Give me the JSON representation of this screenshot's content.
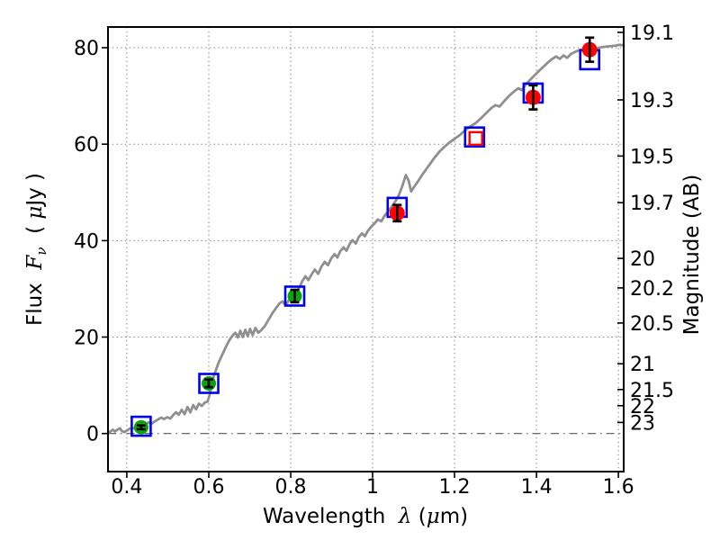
{
  "chart_data": {
    "type": "line",
    "title": "",
    "xlabel": {
      "text": "Wavelength λ (μm)",
      "word": "Wavelength  ",
      "lambda": "λ",
      "open": " (",
      "mu": "μ",
      "close": "m)"
    },
    "ylabel_left": {
      "text": "Flux Fν ( μJy )",
      "word": "Flux  ",
      "symbol": "F",
      "subscript": "ν",
      "open": "  ( ",
      "mu": "μ",
      "close": "Jy )"
    },
    "ylabel_right": "Magnitude (AB)",
    "xlim": [
      0.354,
      1.613
    ],
    "ylim": [
      -7.9,
      84.3
    ],
    "grid": {
      "shown": true,
      "style": "dotted",
      "zero_flux_line_style": "dash-dot"
    },
    "legend": "none",
    "ab_zero_point": 23.9,
    "x_ticks": [
      {
        "v": 0.4,
        "label": "0.4"
      },
      {
        "v": 0.6,
        "label": "0.6"
      },
      {
        "v": 0.8,
        "label": "0.8"
      },
      {
        "v": 1.0,
        "label": "1"
      },
      {
        "v": 1.2,
        "label": "1.2"
      },
      {
        "v": 1.4,
        "label": "1.4"
      },
      {
        "v": 1.6,
        "label": "1.6"
      }
    ],
    "y_ticks_left": [
      {
        "v": 0,
        "label": "0"
      },
      {
        "v": 20,
        "label": "20"
      },
      {
        "v": 40,
        "label": "40"
      },
      {
        "v": 60,
        "label": "60"
      },
      {
        "v": 80,
        "label": "80"
      }
    ],
    "y_ticks_right_mag": [
      {
        "v": 19.1,
        "label": "19.1"
      },
      {
        "v": 19.3,
        "label": "19.3"
      },
      {
        "v": 19.5,
        "label": "19.5"
      },
      {
        "v": 19.7,
        "label": "19.7"
      },
      {
        "v": 20,
        "label": "20"
      },
      {
        "v": 20.2,
        "label": "20.2"
      },
      {
        "v": 20.5,
        "label": "20.5"
      },
      {
        "v": 21,
        "label": "21"
      },
      {
        "v": 21.5,
        "label": "21.5"
      },
      {
        "v": 22,
        "label": "22"
      },
      {
        "v": 23,
        "label": "23"
      }
    ],
    "colors": {
      "spectrum": "#8f8f8f",
      "model_square": "#0000ee",
      "obs_green": "#0ca30c",
      "obs_red": "#ff0000",
      "open_red_square": "#ff0000",
      "error_bar": "#000000"
    },
    "series": [
      {
        "name": "model spectrum",
        "type": "line",
        "color_key": "spectrum",
        "points": [
          [
            0.354,
            0.2
          ],
          [
            0.36,
            0.4
          ],
          [
            0.366,
            0.8
          ],
          [
            0.371,
            0.4
          ],
          [
            0.377,
            0.8
          ],
          [
            0.383,
            1.1
          ],
          [
            0.388,
            0.5
          ],
          [
            0.394,
            0.3
          ],
          [
            0.4,
            0.6
          ],
          [
            0.407,
            1.0
          ],
          [
            0.414,
            1.2
          ],
          [
            0.421,
            0.9
          ],
          [
            0.429,
            1.2
          ],
          [
            0.437,
            1.5
          ],
          [
            0.445,
            1.8
          ],
          [
            0.453,
            2.3
          ],
          [
            0.46,
            2.0
          ],
          [
            0.468,
            2.5
          ],
          [
            0.476,
            2.9
          ],
          [
            0.484,
            3.3
          ],
          [
            0.491,
            3.0
          ],
          [
            0.499,
            3.4
          ],
          [
            0.506,
            3.1
          ],
          [
            0.513,
            3.8
          ],
          [
            0.52,
            4.4
          ],
          [
            0.527,
            3.9
          ],
          [
            0.534,
            4.9
          ],
          [
            0.541,
            4.0
          ],
          [
            0.548,
            5.5
          ],
          [
            0.555,
            4.4
          ],
          [
            0.562,
            5.9
          ],
          [
            0.569,
            5.0
          ],
          [
            0.576,
            6.2
          ],
          [
            0.583,
            5.7
          ],
          [
            0.59,
            6.4
          ],
          [
            0.597,
            6.6
          ],
          [
            0.602,
            8.0
          ],
          [
            0.607,
            10.0
          ],
          [
            0.612,
            11.8
          ],
          [
            0.618,
            13.3
          ],
          [
            0.624,
            14.7
          ],
          [
            0.631,
            16.0
          ],
          [
            0.638,
            17.3
          ],
          [
            0.645,
            18.5
          ],
          [
            0.652,
            19.6
          ],
          [
            0.659,
            20.4
          ],
          [
            0.665,
            20.9
          ],
          [
            0.671,
            19.9
          ],
          [
            0.677,
            21.3
          ],
          [
            0.683,
            20.0
          ],
          [
            0.689,
            21.5
          ],
          [
            0.695,
            20.2
          ],
          [
            0.701,
            21.7
          ],
          [
            0.707,
            20.4
          ],
          [
            0.714,
            21.9
          ],
          [
            0.721,
            20.9
          ],
          [
            0.729,
            21.5
          ],
          [
            0.737,
            22.3
          ],
          [
            0.746,
            23.6
          ],
          [
            0.755,
            24.9
          ],
          [
            0.764,
            26.0
          ],
          [
            0.772,
            26.9
          ],
          [
            0.78,
            27.4
          ],
          [
            0.788,
            26.6
          ],
          [
            0.796,
            27.7
          ],
          [
            0.805,
            28.3
          ],
          [
            0.813,
            29.0
          ],
          [
            0.821,
            30.2
          ],
          [
            0.829,
            31.7
          ],
          [
            0.836,
            32.6
          ],
          [
            0.843,
            31.8
          ],
          [
            0.851,
            33.0
          ],
          [
            0.859,
            34.0
          ],
          [
            0.867,
            33.1
          ],
          [
            0.875,
            34.6
          ],
          [
            0.883,
            35.6
          ],
          [
            0.891,
            34.9
          ],
          [
            0.899,
            36.3
          ],
          [
            0.907,
            37.2
          ],
          [
            0.914,
            36.5
          ],
          [
            0.921,
            37.8
          ],
          [
            0.929,
            38.6
          ],
          [
            0.936,
            37.9
          ],
          [
            0.944,
            39.3
          ],
          [
            0.951,
            40.1
          ],
          [
            0.959,
            39.4
          ],
          [
            0.966,
            40.7
          ],
          [
            0.974,
            41.5
          ],
          [
            0.981,
            40.9
          ],
          [
            0.989,
            42.1
          ],
          [
            0.997,
            42.9
          ],
          [
            1.005,
            43.6
          ],
          [
            1.013,
            44.4
          ],
          [
            1.021,
            44.0
          ],
          [
            1.029,
            45.1
          ],
          [
            1.038,
            46.1
          ],
          [
            1.047,
            47.1
          ],
          [
            1.056,
            48.2
          ],
          [
            1.065,
            49.6
          ],
          [
            1.073,
            51.4
          ],
          [
            1.081,
            53.6
          ],
          [
            1.088,
            52.4
          ],
          [
            1.094,
            50.2
          ],
          [
            1.101,
            51.1
          ],
          [
            1.11,
            52.2
          ],
          [
            1.12,
            53.5
          ],
          [
            1.13,
            54.7
          ],
          [
            1.141,
            56.0
          ],
          [
            1.152,
            57.3
          ],
          [
            1.164,
            58.5
          ],
          [
            1.176,
            59.5
          ],
          [
            1.188,
            60.4
          ],
          [
            1.2,
            61.1
          ],
          [
            1.213,
            61.9
          ],
          [
            1.226,
            62.9
          ],
          [
            1.239,
            63.7
          ],
          [
            1.252,
            64.4
          ],
          [
            1.265,
            65.4
          ],
          [
            1.278,
            66.5
          ],
          [
            1.29,
            67.5
          ],
          [
            1.3,
            68.1
          ],
          [
            1.31,
            67.8
          ],
          [
            1.321,
            68.9
          ],
          [
            1.333,
            70.0
          ],
          [
            1.345,
            70.9
          ],
          [
            1.356,
            71.6
          ],
          [
            1.364,
            71.2
          ],
          [
            1.373,
            72.3
          ],
          [
            1.383,
            73.2
          ],
          [
            1.393,
            74.1
          ],
          [
            1.404,
            75.0
          ],
          [
            1.415,
            75.9
          ],
          [
            1.426,
            76.8
          ],
          [
            1.437,
            77.6
          ],
          [
            1.448,
            78.2
          ],
          [
            1.457,
            77.7
          ],
          [
            1.466,
            78.4
          ],
          [
            1.475,
            77.9
          ],
          [
            1.484,
            78.7
          ],
          [
            1.496,
            79.2
          ],
          [
            1.508,
            79.6
          ],
          [
            1.518,
            79.3
          ],
          [
            1.528,
            79.8
          ],
          [
            1.54,
            79.5
          ],
          [
            1.553,
            80.0
          ],
          [
            1.566,
            80.2
          ],
          [
            1.579,
            80.3
          ],
          [
            1.591,
            80.4
          ],
          [
            1.603,
            80.6
          ],
          [
            1.613,
            80.5
          ]
        ]
      },
      {
        "name": "model photometry squares",
        "type": "open_square",
        "color_key": "model_square",
        "size": 21,
        "stroke_width": 2.6,
        "points": [
          [
            0.435,
            1.5
          ],
          [
            0.6,
            10.4
          ],
          [
            0.81,
            28.5
          ],
          [
            1.06,
            46.9
          ],
          [
            1.249,
            61.5
          ],
          [
            1.392,
            70.6
          ],
          [
            1.53,
            77.5
          ]
        ]
      },
      {
        "name": "predicted band square",
        "type": "open_square",
        "color_key": "open_red_square",
        "size": 14,
        "stroke_width": 2.4,
        "points": [
          [
            1.252,
            61.2
          ]
        ]
      },
      {
        "name": "observed optical photometry",
        "type": "filled_circle_errorbar",
        "color_key": "obs_green",
        "radius": 8,
        "points": [
          [
            0.435,
            1.3,
            0.4
          ],
          [
            0.6,
            10.4,
            0.8
          ],
          [
            0.81,
            28.5,
            1.3
          ]
        ]
      },
      {
        "name": "observed near-infrared photometry",
        "type": "filled_circle_errorbar",
        "color_key": "obs_red",
        "radius": 8.5,
        "points": [
          [
            1.06,
            45.7,
            1.7
          ],
          [
            1.392,
            69.7,
            2.5
          ],
          [
            1.53,
            79.6,
            2.5
          ]
        ]
      }
    ]
  }
}
